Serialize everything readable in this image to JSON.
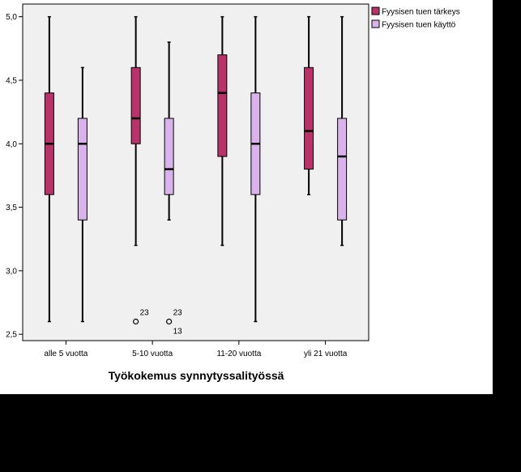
{
  "chart_data": {
    "type": "boxplot",
    "title": "",
    "xlabel": "Työkokemus synnytyssalityössä",
    "ylabel": "",
    "ylim": [
      2.45,
      5.1
    ],
    "yticks": [
      "2,5",
      "3,0",
      "3,5",
      "4,0",
      "4,5",
      "5,0"
    ],
    "ytick_values": [
      2.5,
      3.0,
      3.5,
      4.0,
      4.5,
      5.0
    ],
    "categories": [
      "alle 5 vuotta",
      "5-10 vuotta",
      "11-20 vuotta",
      "yli 21 vuotta"
    ],
    "legend": {
      "placement": "top-right-outside"
    },
    "series": [
      {
        "name": "Fyysisen tuen tärkeys",
        "color": "#b8336a",
        "boxes": [
          {
            "min": 2.6,
            "q1": 3.6,
            "median": 4.0,
            "q3": 4.4,
            "max": 5.0,
            "outliers": []
          },
          {
            "min": 3.2,
            "q1": 4.0,
            "median": 4.2,
            "q3": 4.6,
            "max": 5.0,
            "outliers": [
              {
                "value": 2.6,
                "labels": [
                  "23"
                ]
              }
            ]
          },
          {
            "min": 3.2,
            "q1": 3.9,
            "median": 4.4,
            "q3": 4.7,
            "max": 5.0,
            "outliers": []
          },
          {
            "min": 3.6,
            "q1": 3.8,
            "median": 4.1,
            "q3": 4.6,
            "max": 5.0,
            "outliers": []
          }
        ]
      },
      {
        "name": "Fyysisen tuen käyttö",
        "color": "#dbb3ec",
        "boxes": [
          {
            "min": 2.6,
            "q1": 3.4,
            "median": 4.0,
            "q3": 4.2,
            "max": 4.6,
            "outliers": []
          },
          {
            "min": 3.4,
            "q1": 3.6,
            "median": 3.8,
            "q3": 4.2,
            "max": 4.8,
            "outliers": [
              {
                "value": 2.6,
                "labels": [
                  "23",
                  "13"
                ]
              }
            ]
          },
          {
            "min": 2.6,
            "q1": 3.6,
            "median": 4.0,
            "q3": 4.4,
            "max": 5.0,
            "outliers": []
          },
          {
            "min": 3.2,
            "q1": 3.4,
            "median": 3.9,
            "q3": 4.2,
            "max": 5.0,
            "outliers": []
          }
        ]
      }
    ]
  }
}
